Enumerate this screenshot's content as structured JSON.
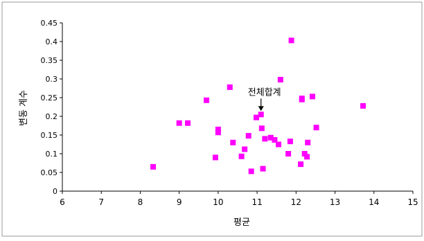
{
  "chart_data": {
    "type": "scatter",
    "title": "",
    "xlabel": "평균",
    "ylabel": "변동 계수",
    "xlim": [
      6,
      15
    ],
    "ylim": [
      0,
      0.45
    ],
    "x_ticks": [
      "6",
      "7",
      "8",
      "9",
      "10",
      "11",
      "12",
      "13",
      "14",
      "15"
    ],
    "y_ticks": [
      "0",
      "0.05",
      "0.1",
      "0.15",
      "0.2",
      "0.25",
      "0.3",
      "0.35",
      "0.4",
      "0.45"
    ],
    "grid": false,
    "legend": "none",
    "marker_color": "#ff00ff",
    "annotation": {
      "text": "전체합계",
      "x": 11.1,
      "y": 0.205
    },
    "series": [
      {
        "points": [
          [
            8.33,
            0.065
          ],
          [
            9.0,
            0.182
          ],
          [
            9.22,
            0.182
          ],
          [
            9.7,
            0.243
          ],
          [
            9.93,
            0.09
          ],
          [
            10.0,
            0.165
          ],
          [
            10.0,
            0.157
          ],
          [
            10.3,
            0.278
          ],
          [
            10.38,
            0.13
          ],
          [
            10.6,
            0.093
          ],
          [
            10.68,
            0.112
          ],
          [
            10.78,
            0.148
          ],
          [
            10.85,
            0.053
          ],
          [
            10.98,
            0.197
          ],
          [
            11.1,
            0.205
          ],
          [
            11.12,
            0.168
          ],
          [
            11.15,
            0.06
          ],
          [
            11.2,
            0.14
          ],
          [
            11.35,
            0.143
          ],
          [
            11.45,
            0.137
          ],
          [
            11.55,
            0.125
          ],
          [
            11.6,
            0.298
          ],
          [
            11.8,
            0.1
          ],
          [
            11.85,
            0.133
          ],
          [
            11.88,
            0.403
          ],
          [
            12.12,
            0.072
          ],
          [
            12.15,
            0.248
          ],
          [
            12.15,
            0.245
          ],
          [
            12.22,
            0.1
          ],
          [
            12.28,
            0.092
          ],
          [
            12.3,
            0.13
          ],
          [
            12.42,
            0.253
          ],
          [
            12.52,
            0.17
          ],
          [
            13.72,
            0.228
          ]
        ]
      }
    ]
  }
}
